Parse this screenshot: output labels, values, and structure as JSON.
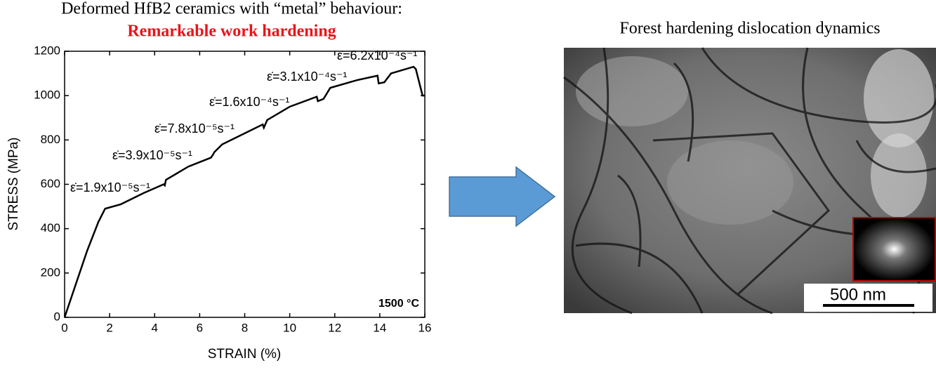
{
  "chart_data": {
    "type": "line",
    "title": "Deformed HfB2 ceramics with “metal” behaviour:",
    "subtitle": "Remarkable work hardening",
    "x_label": "STRAIN (%)",
    "y_label": "STRESS (MPa)",
    "xlim": [
      0,
      16
    ],
    "xticks": [
      0,
      2,
      4,
      6,
      8,
      10,
      12,
      14,
      16
    ],
    "ylim": [
      0,
      1200
    ],
    "yticks": [
      0,
      200,
      400,
      600,
      800,
      1000,
      1200
    ],
    "series": [
      {
        "color": "#000000",
        "x": [
          0,
          0.5,
          1,
          1.5,
          1.8,
          2.5,
          3.5,
          4.4,
          4.45,
          4.5,
          5.5,
          6.5,
          6.6,
          6.65,
          7,
          8,
          8.8,
          8.85,
          9,
          10,
          11.2,
          11.25,
          11.5,
          11.8,
          13,
          13.9,
          13.95,
          14.2,
          14.5,
          15.5,
          15.6,
          15.9,
          16
        ],
        "values": [
          0,
          150,
          300,
          430,
          490,
          510,
          560,
          600,
          595,
          620,
          680,
          720,
          735,
          745,
          780,
          830,
          870,
          855,
          890,
          950,
          995,
          975,
          985,
          1035,
          1070,
          1090,
          1055,
          1060,
          1100,
          1130,
          1120,
          1000,
          1000
        ]
      }
    ],
    "annotations": [
      "ε̇=1.9x10⁻⁵s⁻¹",
      "ε̇=3.9x10⁻⁵s⁻¹",
      "ε̇=7.8x10⁻⁵s⁻¹",
      "ε̇=1.6x10⁻⁴s⁻¹",
      "ε̇=3.1x10⁻⁴s⁻¹",
      "ε̇=6.2x10⁻⁴s⁻¹",
      "1500 °C"
    ]
  },
  "image": {
    "title": "Forest hardening dislocation dynamics",
    "scale_bar": "500 nm"
  }
}
